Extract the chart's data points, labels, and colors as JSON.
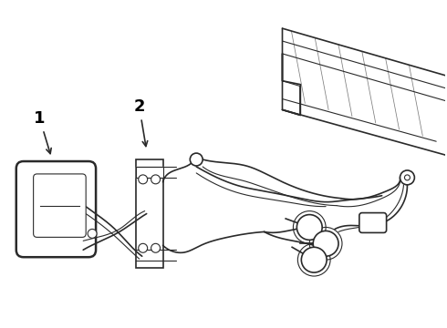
{
  "background_color": "#ffffff",
  "line_color": "#2a2a2a",
  "label_color": "#000000",
  "fig_width": 4.9,
  "fig_height": 3.6,
  "dpi": 100,
  "label1_text": "1",
  "label2_text": "2"
}
